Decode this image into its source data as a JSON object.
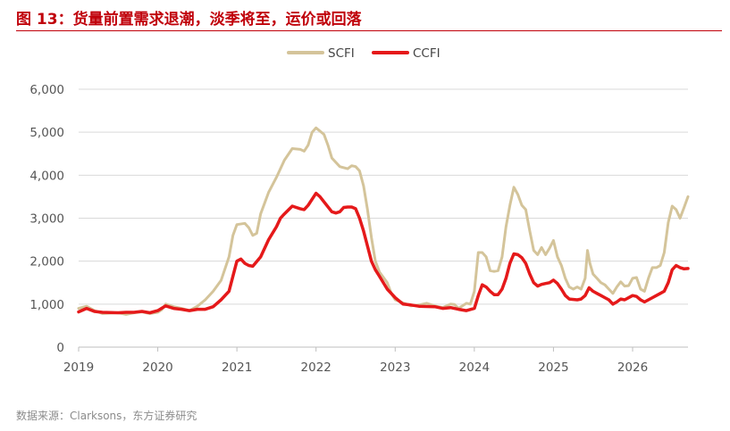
{
  "title": "图 13：货量前置需求退潮，淡季将至，运价或回落",
  "source": "数据来源：Clarksons，东方证券研究",
  "colors": {
    "title": "#c0000a",
    "scfi": "#d4c49a",
    "ccfi": "#e5191a",
    "grid": "#d9d9d9"
  },
  "chart_data": {
    "type": "line",
    "legend_position": "top-center",
    "grid": true,
    "ylim": [
      0,
      6000
    ],
    "xlim": [
      2019,
      2026.7
    ],
    "y_ticks": [
      "0",
      "1,000",
      "2,000",
      "3,000",
      "4,000",
      "5,000",
      "6,000"
    ],
    "x_ticks": [
      "2019",
      "2020",
      "2021",
      "2022",
      "2023",
      "2024",
      "2025",
      "2026"
    ],
    "series": [
      {
        "name": "SCFI",
        "points": [
          [
            2019.0,
            900
          ],
          [
            2019.1,
            950
          ],
          [
            2019.2,
            850
          ],
          [
            2019.3,
            780
          ],
          [
            2019.5,
            800
          ],
          [
            2019.6,
            760
          ],
          [
            2019.7,
            800
          ],
          [
            2019.8,
            820
          ],
          [
            2019.9,
            780
          ],
          [
            2020.0,
            810
          ],
          [
            2020.05,
            870
          ],
          [
            2020.1,
            1000
          ],
          [
            2020.2,
            940
          ],
          [
            2020.3,
            900
          ],
          [
            2020.4,
            850
          ],
          [
            2020.5,
            950
          ],
          [
            2020.6,
            1100
          ],
          [
            2020.7,
            1300
          ],
          [
            2020.8,
            1550
          ],
          [
            2020.9,
            2100
          ],
          [
            2020.95,
            2600
          ],
          [
            2021.0,
            2850
          ],
          [
            2021.1,
            2880
          ],
          [
            2021.15,
            2780
          ],
          [
            2021.2,
            2600
          ],
          [
            2021.25,
            2650
          ],
          [
            2021.3,
            3100
          ],
          [
            2021.4,
            3600
          ],
          [
            2021.5,
            3950
          ],
          [
            2021.6,
            4350
          ],
          [
            2021.7,
            4620
          ],
          [
            2021.8,
            4600
          ],
          [
            2021.85,
            4560
          ],
          [
            2021.9,
            4700
          ],
          [
            2021.95,
            5000
          ],
          [
            2022.0,
            5100
          ],
          [
            2022.1,
            4950
          ],
          [
            2022.15,
            4700
          ],
          [
            2022.2,
            4400
          ],
          [
            2022.3,
            4200
          ],
          [
            2022.4,
            4150
          ],
          [
            2022.45,
            4220
          ],
          [
            2022.5,
            4200
          ],
          [
            2022.55,
            4100
          ],
          [
            2022.6,
            3750
          ],
          [
            2022.65,
            3200
          ],
          [
            2022.7,
            2550
          ],
          [
            2022.75,
            2000
          ],
          [
            2022.8,
            1750
          ],
          [
            2022.9,
            1500
          ],
          [
            2022.95,
            1250
          ],
          [
            2023.0,
            1100
          ],
          [
            2023.1,
            1030
          ],
          [
            2023.2,
            960
          ],
          [
            2023.3,
            980
          ],
          [
            2023.4,
            1020
          ],
          [
            2023.5,
            960
          ],
          [
            2023.6,
            920
          ],
          [
            2023.7,
            1000
          ],
          [
            2023.75,
            990
          ],
          [
            2023.8,
            900
          ],
          [
            2023.9,
            1020
          ],
          [
            2023.95,
            1000
          ],
          [
            2024.0,
            1300
          ],
          [
            2024.05,
            2200
          ],
          [
            2024.1,
            2200
          ],
          [
            2024.15,
            2100
          ],
          [
            2024.2,
            1780
          ],
          [
            2024.25,
            1760
          ],
          [
            2024.3,
            1780
          ],
          [
            2024.35,
            2100
          ],
          [
            2024.4,
            2800
          ],
          [
            2024.45,
            3300
          ],
          [
            2024.5,
            3720
          ],
          [
            2024.55,
            3550
          ],
          [
            2024.6,
            3300
          ],
          [
            2024.65,
            3200
          ],
          [
            2024.7,
            2700
          ],
          [
            2024.75,
            2250
          ],
          [
            2024.8,
            2150
          ],
          [
            2024.85,
            2320
          ],
          [
            2024.9,
            2150
          ],
          [
            2024.95,
            2300
          ],
          [
            2025.0,
            2480
          ],
          [
            2025.05,
            2100
          ],
          [
            2025.1,
            1900
          ],
          [
            2025.15,
            1600
          ],
          [
            2025.2,
            1400
          ],
          [
            2025.25,
            1350
          ],
          [
            2025.3,
            1400
          ],
          [
            2025.35,
            1350
          ],
          [
            2025.4,
            1600
          ],
          [
            2025.43,
            2250
          ],
          [
            2025.46,
            1950
          ],
          [
            2025.5,
            1700
          ],
          [
            2025.55,
            1600
          ],
          [
            2025.6,
            1500
          ],
          [
            2025.65,
            1450
          ],
          [
            2025.7,
            1350
          ],
          [
            2025.75,
            1250
          ],
          [
            2025.8,
            1400
          ],
          [
            2025.85,
            1520
          ],
          [
            2025.9,
            1420
          ],
          [
            2025.95,
            1430
          ],
          [
            2026.0,
            1600
          ],
          [
            2026.05,
            1620
          ],
          [
            2026.1,
            1350
          ],
          [
            2026.15,
            1300
          ],
          [
            2026.2,
            1600
          ],
          [
            2026.25,
            1850
          ],
          [
            2026.3,
            1850
          ],
          [
            2026.35,
            1900
          ],
          [
            2026.4,
            2200
          ],
          [
            2026.45,
            2900
          ],
          [
            2026.5,
            3280
          ],
          [
            2026.55,
            3200
          ],
          [
            2026.6,
            3000
          ],
          [
            2026.65,
            3250
          ],
          [
            2026.7,
            3500
          ]
        ]
      },
      {
        "name": "CCFI",
        "points": [
          [
            2019.0,
            820
          ],
          [
            2019.1,
            900
          ],
          [
            2019.2,
            830
          ],
          [
            2019.3,
            810
          ],
          [
            2019.5,
            800
          ],
          [
            2019.6,
            810
          ],
          [
            2019.7,
            810
          ],
          [
            2019.8,
            830
          ],
          [
            2019.9,
            800
          ],
          [
            2020.0,
            850
          ],
          [
            2020.1,
            960
          ],
          [
            2020.2,
            900
          ],
          [
            2020.3,
            880
          ],
          [
            2020.4,
            850
          ],
          [
            2020.5,
            880
          ],
          [
            2020.6,
            880
          ],
          [
            2020.7,
            940
          ],
          [
            2020.8,
            1100
          ],
          [
            2020.9,
            1300
          ],
          [
            2020.95,
            1650
          ],
          [
            2021.0,
            2000
          ],
          [
            2021.05,
            2050
          ],
          [
            2021.1,
            1950
          ],
          [
            2021.15,
            1900
          ],
          [
            2021.2,
            1880
          ],
          [
            2021.3,
            2100
          ],
          [
            2021.4,
            2500
          ],
          [
            2021.5,
            2800
          ],
          [
            2021.55,
            3000
          ],
          [
            2021.6,
            3100
          ],
          [
            2021.7,
            3280
          ],
          [
            2021.8,
            3220
          ],
          [
            2021.85,
            3200
          ],
          [
            2021.9,
            3300
          ],
          [
            2022.0,
            3580
          ],
          [
            2022.05,
            3500
          ],
          [
            2022.1,
            3380
          ],
          [
            2022.2,
            3150
          ],
          [
            2022.25,
            3120
          ],
          [
            2022.3,
            3150
          ],
          [
            2022.35,
            3250
          ],
          [
            2022.4,
            3260
          ],
          [
            2022.45,
            3260
          ],
          [
            2022.5,
            3220
          ],
          [
            2022.55,
            3000
          ],
          [
            2022.6,
            2700
          ],
          [
            2022.65,
            2350
          ],
          [
            2022.7,
            2000
          ],
          [
            2022.75,
            1800
          ],
          [
            2022.8,
            1650
          ],
          [
            2022.9,
            1350
          ],
          [
            2023.0,
            1150
          ],
          [
            2023.1,
            1000
          ],
          [
            2023.2,
            980
          ],
          [
            2023.3,
            950
          ],
          [
            2023.5,
            940
          ],
          [
            2023.6,
            900
          ],
          [
            2023.7,
            920
          ],
          [
            2023.8,
            880
          ],
          [
            2023.9,
            850
          ],
          [
            2024.0,
            900
          ],
          [
            2024.05,
            1200
          ],
          [
            2024.1,
            1450
          ],
          [
            2024.15,
            1400
          ],
          [
            2024.2,
            1300
          ],
          [
            2024.25,
            1220
          ],
          [
            2024.3,
            1220
          ],
          [
            2024.35,
            1350
          ],
          [
            2024.4,
            1600
          ],
          [
            2024.45,
            1950
          ],
          [
            2024.5,
            2170
          ],
          [
            2024.55,
            2150
          ],
          [
            2024.6,
            2080
          ],
          [
            2024.65,
            1950
          ],
          [
            2024.7,
            1700
          ],
          [
            2024.75,
            1500
          ],
          [
            2024.8,
            1420
          ],
          [
            2024.85,
            1460
          ],
          [
            2024.9,
            1480
          ],
          [
            2024.95,
            1500
          ],
          [
            2025.0,
            1560
          ],
          [
            2025.05,
            1480
          ],
          [
            2025.1,
            1350
          ],
          [
            2025.15,
            1200
          ],
          [
            2025.2,
            1120
          ],
          [
            2025.3,
            1100
          ],
          [
            2025.35,
            1120
          ],
          [
            2025.4,
            1200
          ],
          [
            2025.45,
            1380
          ],
          [
            2025.5,
            1300
          ],
          [
            2025.55,
            1250
          ],
          [
            2025.6,
            1200
          ],
          [
            2025.65,
            1150
          ],
          [
            2025.7,
            1100
          ],
          [
            2025.75,
            1000
          ],
          [
            2025.8,
            1050
          ],
          [
            2025.85,
            1120
          ],
          [
            2025.9,
            1100
          ],
          [
            2025.95,
            1150
          ],
          [
            2026.0,
            1200
          ],
          [
            2026.05,
            1180
          ],
          [
            2026.1,
            1100
          ],
          [
            2026.15,
            1050
          ],
          [
            2026.2,
            1100
          ],
          [
            2026.25,
            1150
          ],
          [
            2026.3,
            1200
          ],
          [
            2026.35,
            1250
          ],
          [
            2026.4,
            1300
          ],
          [
            2026.45,
            1500
          ],
          [
            2026.5,
            1800
          ],
          [
            2026.55,
            1900
          ],
          [
            2026.6,
            1850
          ],
          [
            2026.65,
            1820
          ],
          [
            2026.7,
            1830
          ]
        ]
      }
    ]
  }
}
